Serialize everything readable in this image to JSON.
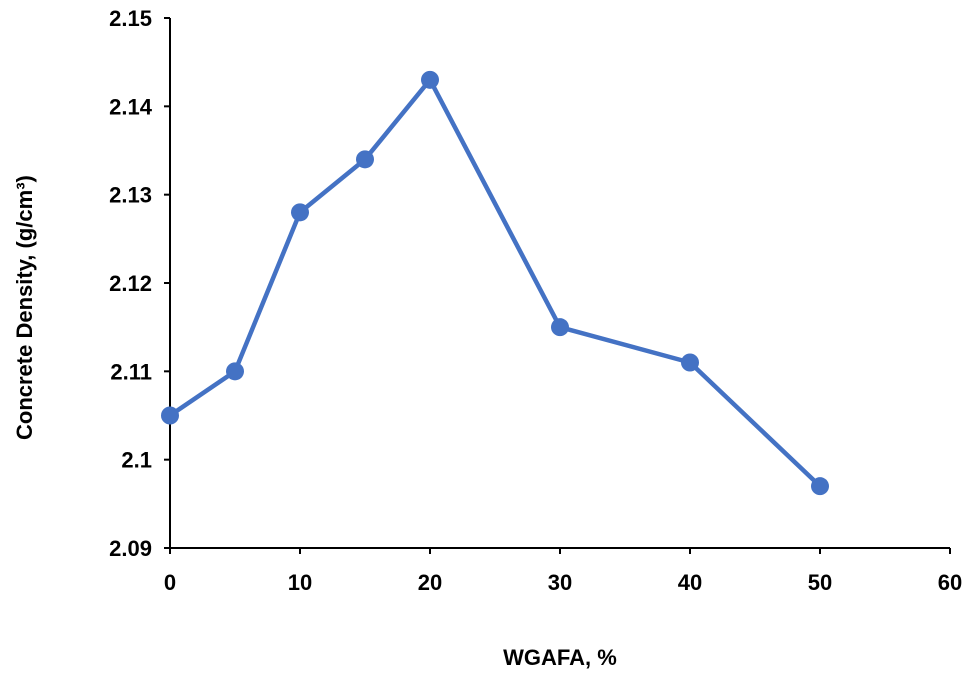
{
  "chart_data": {
    "type": "line",
    "title": "",
    "xlabel": "WGAFA, %",
    "ylabel": "Concrete Density, (g/cm³)",
    "x": [
      0,
      5,
      10,
      15,
      20,
      30,
      40,
      50
    ],
    "y": [
      2.105,
      2.11,
      2.128,
      2.134,
      2.143,
      2.115,
      2.111,
      2.097
    ],
    "xlim": [
      0,
      60
    ],
    "ylim": [
      2.09,
      2.15
    ],
    "x_ticks": [
      "0",
      "10",
      "20",
      "30",
      "40",
      "50",
      "60"
    ],
    "x_tick_values": [
      0,
      10,
      20,
      30,
      40,
      50,
      60
    ],
    "y_ticks": [
      "2.09",
      "2.1",
      "2.11",
      "2.12",
      "2.13",
      "2.14",
      "2.15"
    ],
    "y_tick_values": [
      2.09,
      2.1,
      2.11,
      2.12,
      2.13,
      2.14,
      2.15
    ],
    "series_name": "Concrete Density",
    "series_color": "#4472C4",
    "axis_color": "#000000",
    "grid": false,
    "legend": false,
    "marker": "circle"
  }
}
